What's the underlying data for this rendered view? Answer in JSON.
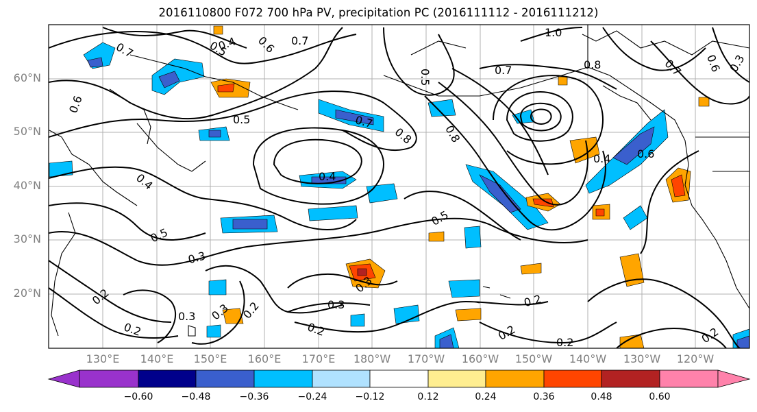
{
  "title": "2016110800 F072 700 hPa PV, precipitation PC (2016111112 - 2016111212)",
  "lat_labels": [
    "60°N",
    "50°N",
    "40°N",
    "30°N",
    "20°N"
  ],
  "lon_labels": [
    "130°E",
    "140°E",
    "150°E",
    "160°E",
    "170°E",
    "180°W",
    "170°W",
    "160°W",
    "150°W",
    "140°W",
    "130°W",
    "120°W"
  ],
  "contour_labels": [
    "1.0",
    "0.8",
    "0.8",
    "0.8",
    "0.7",
    "0.7",
    "0.7",
    "0.7",
    "0.7",
    "0.6",
    "0.6",
    "0.6",
    "0.6",
    "0.5",
    "0.5",
    "0.5",
    "0.5",
    "0.5",
    "0.4",
    "0.4",
    "0.4",
    "0.4",
    "0.3",
    "0.3",
    "0.3",
    "0.3",
    "0.3",
    "0.3",
    "0.2",
    "0.2",
    "0.2",
    "0.2",
    "0.2",
    "0.2",
    "0.2",
    "0.2"
  ],
  "colorbar": {
    "colors": [
      "#9932cc",
      "#00008b",
      "#3a5fcd",
      "#00bfff",
      "#b0e2ff",
      "#ffffff",
      "#ffee90",
      "#ffa500",
      "#ff4500",
      "#b22222",
      "#ff82ab"
    ],
    "tick_labels": [
      "−0.60",
      "−0.48",
      "−0.36",
      "−0.24",
      "−0.12",
      "0.12",
      "0.24",
      "0.36",
      "0.48",
      "0.60"
    ]
  }
}
